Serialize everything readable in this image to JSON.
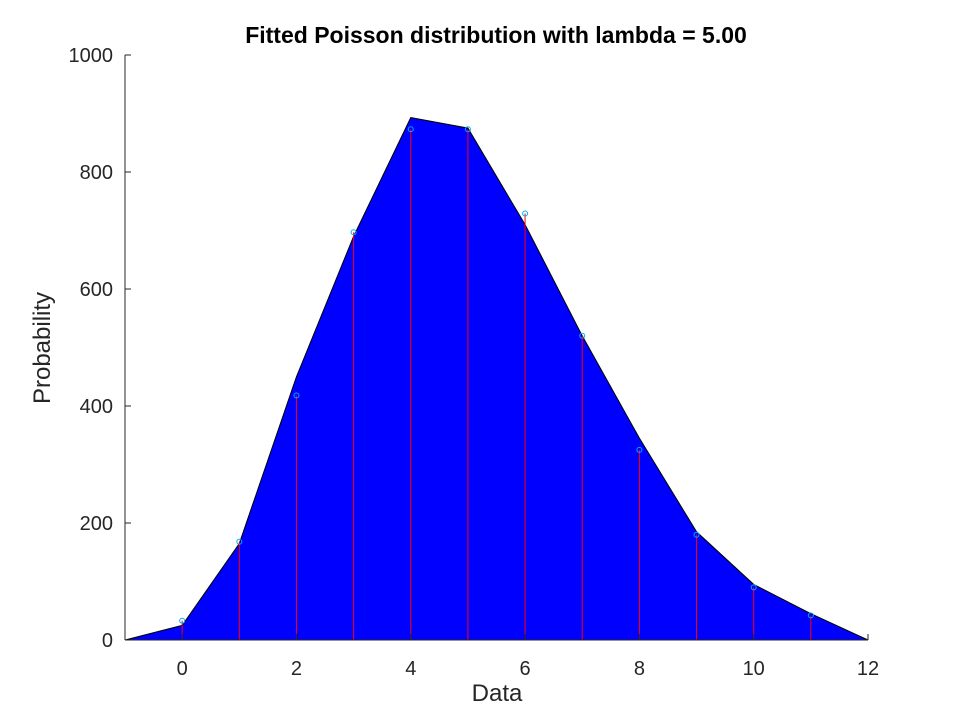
{
  "chart_data": {
    "type": "area",
    "title": "Fitted Poisson distribution with lambda = 5.00",
    "xlabel": "Data",
    "ylabel": "Probability",
    "xlim": [
      -1,
      12
    ],
    "ylim": [
      0,
      1000
    ],
    "xticks": [
      0,
      2,
      4,
      6,
      8,
      10,
      12
    ],
    "yticks": [
      0,
      200,
      400,
      600,
      800,
      1000
    ],
    "grid": false,
    "fitted_area": {
      "x": [
        -1,
        0,
        1,
        2,
        3,
        4,
        5,
        6,
        7,
        8,
        9,
        10,
        11,
        12
      ],
      "y": [
        0,
        25,
        165,
        450,
        690,
        893,
        875,
        710,
        520,
        345,
        185,
        95,
        45,
        0
      ],
      "fill_color": "#0000ff",
      "edge_color": "#000000"
    },
    "observed": {
      "x": [
        0,
        1,
        2,
        3,
        4,
        5,
        6,
        7,
        8,
        9,
        10,
        11
      ],
      "y": [
        33,
        168,
        418,
        697,
        873,
        873,
        729,
        520,
        325,
        180,
        90,
        42
      ],
      "stem_color": "#ff0000",
      "marker_color": "#00aaff"
    }
  }
}
